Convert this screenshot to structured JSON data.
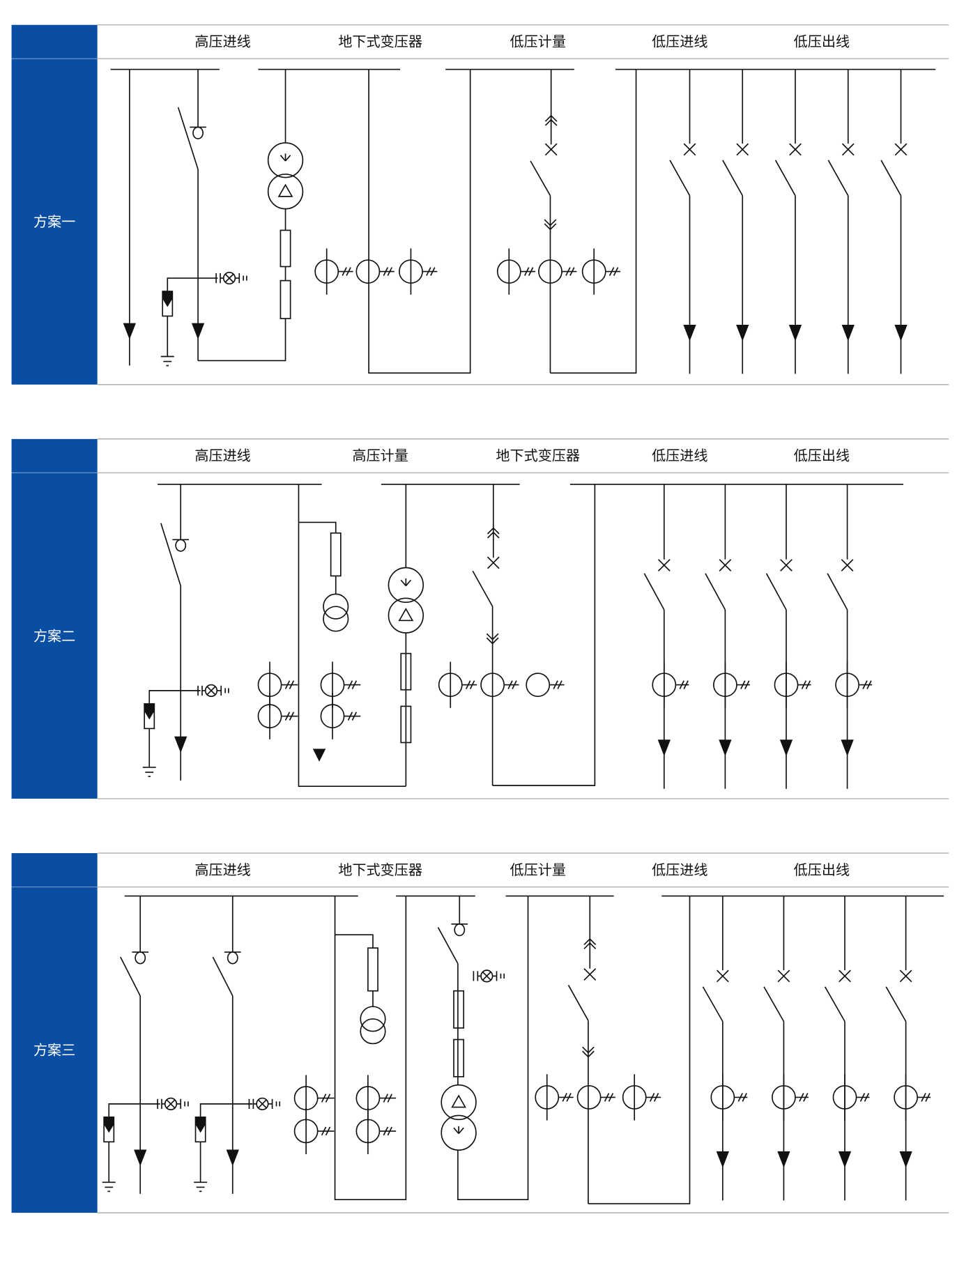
{
  "colors": {
    "side_panel": "#0a4ea3",
    "rule": "#b0b0b0",
    "line": "#111111"
  },
  "schemes": [
    {
      "label": "方案一",
      "columns": [
        "高压进线",
        "地下式变压器",
        "低压计量",
        "低压进线",
        "低压出线"
      ]
    },
    {
      "label": "方案二",
      "columns": [
        "高压进线",
        "高压计量",
        "地下式变压器",
        "低压进线",
        "低压出线"
      ]
    },
    {
      "label": "方案三",
      "columns": [
        "高压进线",
        "地下式变压器",
        "低压计量",
        "低压进线",
        "低压出线"
      ]
    }
  ]
}
